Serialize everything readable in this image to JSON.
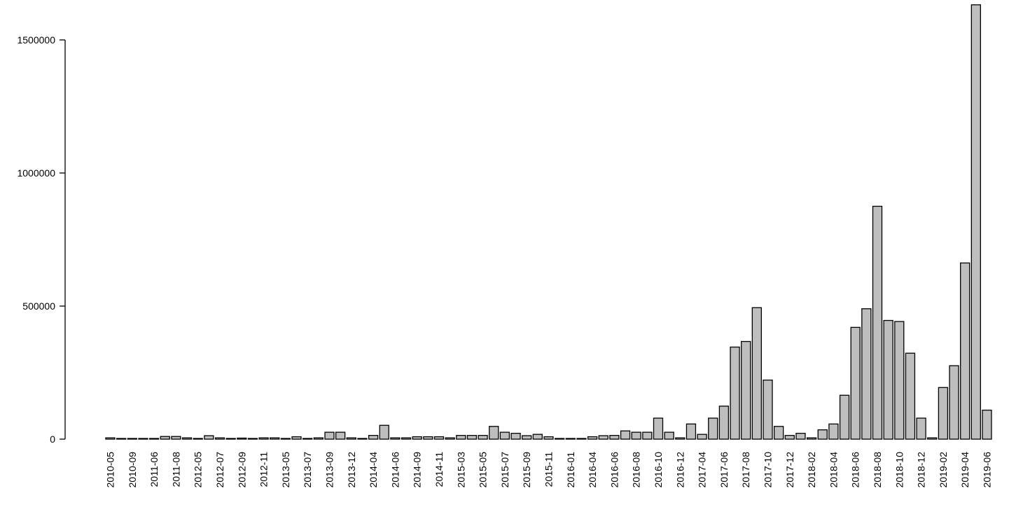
{
  "chart_data": {
    "type": "bar",
    "title": "",
    "xlabel": "",
    "ylabel": "",
    "ylim": [
      0,
      1650000
    ],
    "yticks": [
      0,
      500000,
      1000000,
      1500000
    ],
    "ytick_labels": [
      "0",
      "500000",
      "1000000",
      "1500000"
    ],
    "grid": false,
    "legend": "none",
    "bar_color": "#bebebe",
    "categories": [
      "2010-05",
      "2010-07",
      "2010-09",
      "2011-04",
      "2011-06",
      "2011-07",
      "2011-08",
      "2011-12",
      "2012-05",
      "2012-06",
      "2012-07",
      "2012-08",
      "2012-09",
      "2012-10",
      "2012-11",
      "2013-04",
      "2013-05",
      "2013-06",
      "2013-07",
      "2013-08",
      "2013-09",
      "2013-10",
      "2013-12",
      "2014-02",
      "2014-04",
      "2014-05",
      "2014-06",
      "2014-08",
      "2014-09",
      "2014-10",
      "2014-11",
      "2015-02",
      "2015-03",
      "2015-04",
      "2015-05",
      "2015-06",
      "2015-07",
      "2015-08",
      "2015-09",
      "2015-10",
      "2015-11",
      "2015-12",
      "2016-01",
      "2016-03",
      "2016-04",
      "2016-05",
      "2016-06",
      "2016-07",
      "2016-08",
      "2016-09",
      "2016-10",
      "2016-11",
      "2016-12",
      "2017-03",
      "2017-04",
      "2017-05",
      "2017-06",
      "2017-07",
      "2017-08",
      "2017-09",
      "2017-10",
      "2017-11",
      "2017-12",
      "2018-01",
      "2018-02",
      "2018-03",
      "2018-04",
      "2018-05",
      "2018-06",
      "2018-07",
      "2018-08",
      "2018-09",
      "2018-10",
      "2018-11",
      "2018-12",
      "2019-01",
      "2019-02",
      "2019-03",
      "2019-04",
      "2019-05",
      "2019-06"
    ],
    "visible_labels": [
      "2010-05",
      "2010-09",
      "2011-06",
      "2011-08",
      "2012-05",
      "2012-07",
      "2012-09",
      "2012-11",
      "2013-05",
      "2013-07",
      "2013-09",
      "2013-12",
      "2014-04",
      "2014-06",
      "2014-09",
      "2014-11",
      "2015-03",
      "2015-05",
      "2015-07",
      "2015-09",
      "2015-11",
      "2016-01",
      "2016-04",
      "2016-06",
      "2016-08",
      "2016-10",
      "2016-12",
      "2017-04",
      "2017-06",
      "2017-08",
      "2017-10",
      "2017-12",
      "2018-02",
      "2018-04",
      "2018-06",
      "2018-08",
      "2018-10",
      "2018-12",
      "2019-02",
      "2019-04",
      "2019-06"
    ],
    "values": [
      5000,
      1000,
      1000,
      1000,
      1000,
      10000,
      10000,
      5000,
      1000,
      13000,
      5000,
      1000,
      4000,
      1000,
      5000,
      5000,
      1000,
      9000,
      1000,
      5000,
      26000,
      26000,
      5000,
      1000,
      14000,
      52000,
      5000,
      5000,
      9000,
      9000,
      9000,
      5000,
      14000,
      14000,
      14000,
      48000,
      26000,
      22000,
      13000,
      18000,
      9000,
      1000,
      1000,
      1000,
      9000,
      13000,
      14000,
      31000,
      26000,
      26000,
      79000,
      26000,
      5000,
      57000,
      18000,
      79000,
      124000,
      346000,
      367000,
      494000,
      222000,
      48000,
      14000,
      22000,
      5000,
      35000,
      57000,
      165000,
      420000,
      490000,
      875000,
      446000,
      442000,
      323000,
      79000,
      5000,
      194000,
      276000,
      662000,
      1632000,
      109000
    ]
  }
}
